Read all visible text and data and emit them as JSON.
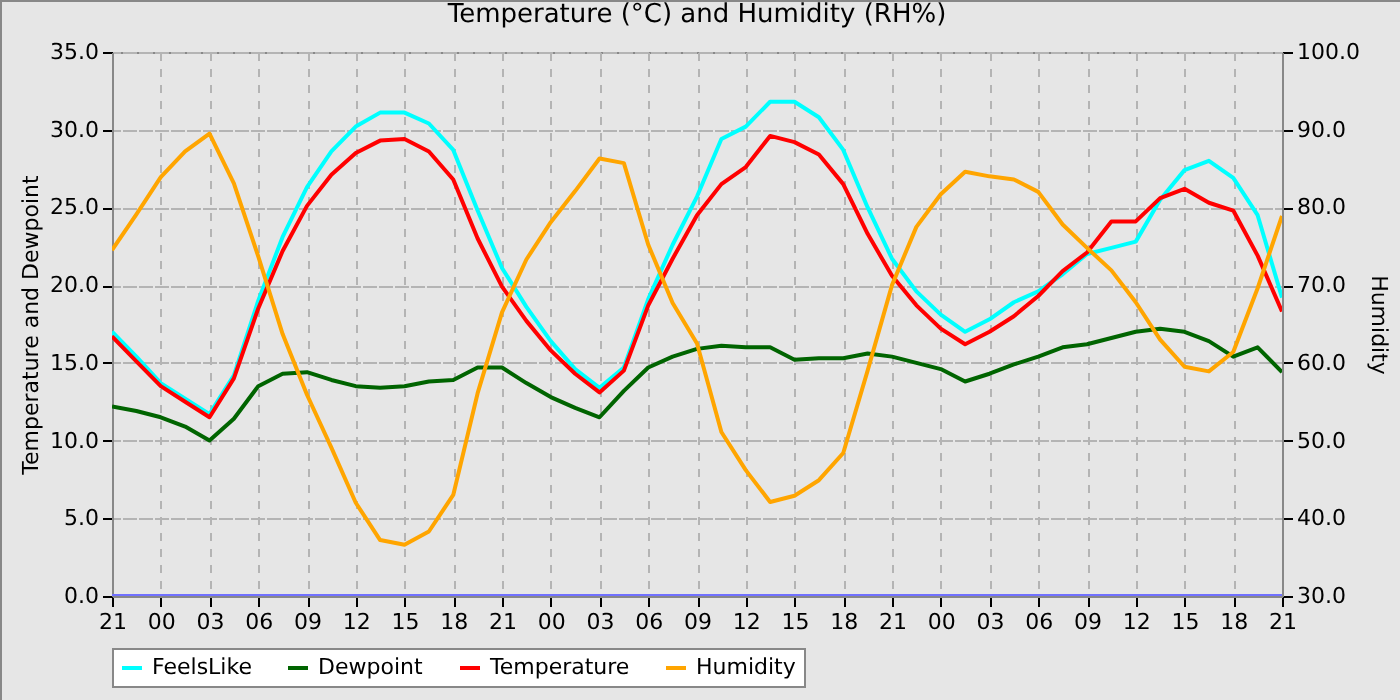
{
  "chart_data": {
    "type": "line",
    "title": "Temperature (°C) and Humidity (RH%)",
    "ylabel": "Temperature and Dewpoint",
    "y2label": "Humidity",
    "categories": [
      "21",
      null,
      "00",
      null,
      "03",
      null,
      "06",
      null,
      "09",
      null,
      "12",
      null,
      "15",
      null,
      "18",
      null,
      "21",
      null,
      "00",
      null,
      "03",
      null,
      "06",
      null,
      "09",
      null,
      "12",
      null,
      "15",
      null,
      "18",
      null,
      "21",
      null,
      "00",
      null,
      "03",
      null,
      "06",
      null,
      "09",
      null,
      "12",
      null,
      "15",
      null,
      "18",
      null,
      "21"
    ],
    "series": [
      {
        "name": "FeelsLike",
        "color": "#00ffff",
        "values": [
          17.0,
          15.4,
          13.7,
          12.7,
          11.7,
          14.2,
          19.0,
          23.1,
          26.3,
          28.6,
          30.2,
          31.1,
          31.1,
          30.4,
          28.7,
          24.8,
          21.1,
          18.6,
          16.4,
          14.6,
          13.4,
          14.7,
          19.1,
          22.6,
          25.7,
          29.4,
          30.2,
          31.8,
          31.8,
          30.8,
          28.7,
          25.0,
          21.7,
          19.6,
          18.1,
          17.0,
          17.8,
          18.9,
          19.6,
          20.7,
          22.0,
          22.4,
          22.8,
          25.5,
          27.4,
          28.0,
          26.9,
          24.5,
          19.2
        ]
      },
      {
        "name": "Dewpoint",
        "color": "#006400",
        "values": [
          12.2,
          11.9,
          11.5,
          10.9,
          10.0,
          11.4,
          13.5,
          14.3,
          14.4,
          13.9,
          13.5,
          13.4,
          13.5,
          13.8,
          13.9,
          14.7,
          14.7,
          13.7,
          12.8,
          12.1,
          11.5,
          13.2,
          14.7,
          15.4,
          15.9,
          16.1,
          16.0,
          16.0,
          15.2,
          15.3,
          15.3,
          15.6,
          15.4,
          15.0,
          14.6,
          13.8,
          14.3,
          14.9,
          15.4,
          16.0,
          16.2,
          16.6,
          17.0,
          17.2,
          17.0,
          16.4,
          15.4,
          16.0,
          14.4
        ]
      },
      {
        "name": "Temperature",
        "color": "#ff0000",
        "values": [
          16.7,
          15.1,
          13.5,
          12.5,
          11.5,
          14.0,
          18.5,
          22.2,
          25.1,
          27.1,
          28.5,
          29.3,
          29.4,
          28.6,
          26.8,
          23.0,
          19.9,
          17.7,
          15.8,
          14.3,
          13.1,
          14.5,
          18.7,
          21.7,
          24.5,
          26.5,
          27.6,
          29.6,
          29.2,
          28.4,
          26.5,
          23.3,
          20.6,
          18.7,
          17.2,
          16.2,
          17.0,
          18.0,
          19.3,
          20.9,
          22.1,
          24.1,
          24.1,
          25.6,
          26.2,
          25.3,
          24.8,
          21.9,
          18.3
        ]
      },
      {
        "name": "Humidity",
        "color": "#ffa500",
        "axis": "y2",
        "values": [
          74.5,
          79.1,
          83.9,
          87.2,
          89.5,
          83.1,
          73.7,
          63.7,
          55.9,
          49.1,
          42.0,
          37.2,
          36.6,
          38.3,
          43.0,
          56.1,
          66.5,
          73.3,
          78.1,
          82.1,
          86.3,
          85.7,
          75.2,
          67.7,
          62.5,
          51.1,
          46.2,
          42.1,
          42.9,
          44.9,
          48.4,
          59.0,
          70.0,
          77.5,
          81.7,
          84.6,
          84.0,
          83.6,
          82.0,
          77.8,
          74.8,
          71.9,
          67.8,
          63.0,
          59.5,
          58.9,
          61.4,
          69.6,
          78.9
        ]
      },
      {
        "color": "#7070ff",
        "values": [
          0,
          0,
          0,
          0,
          0,
          0,
          0,
          0,
          0,
          0,
          0,
          0,
          0,
          0,
          0,
          0,
          0,
          0,
          0,
          0,
          0,
          0,
          0,
          0,
          0,
          0,
          0,
          0,
          0,
          0,
          0,
          0,
          0,
          0,
          0,
          0,
          0,
          0,
          0,
          0,
          0,
          0,
          0,
          0,
          0,
          0,
          0,
          0,
          0
        ]
      }
    ],
    "ylim": [
      0,
      35
    ],
    "yticks": [
      {
        "value": 0,
        "label": "0.0"
      },
      {
        "value": 5,
        "label": "5.0"
      },
      {
        "value": 10,
        "label": "10.0"
      },
      {
        "value": 15,
        "label": "15.0"
      },
      {
        "value": 20,
        "label": "20.0"
      },
      {
        "value": 25,
        "label": "25.0"
      },
      {
        "value": 30,
        "label": "30.0"
      },
      {
        "value": 35,
        "label": "35.0"
      }
    ],
    "y2lim": [
      30,
      100
    ],
    "y2ticks": [
      {
        "value": 30,
        "label": "30.0"
      },
      {
        "value": 40,
        "label": "40.0"
      },
      {
        "value": 50,
        "label": "50.0"
      },
      {
        "value": 60,
        "label": "60.0"
      },
      {
        "value": 70,
        "label": "70.0"
      },
      {
        "value": 80,
        "label": "80.0"
      },
      {
        "value": 90,
        "label": "90.0"
      },
      {
        "value": 100,
        "label": "100.0"
      }
    ],
    "grid": true,
    "legend": "bottom"
  }
}
